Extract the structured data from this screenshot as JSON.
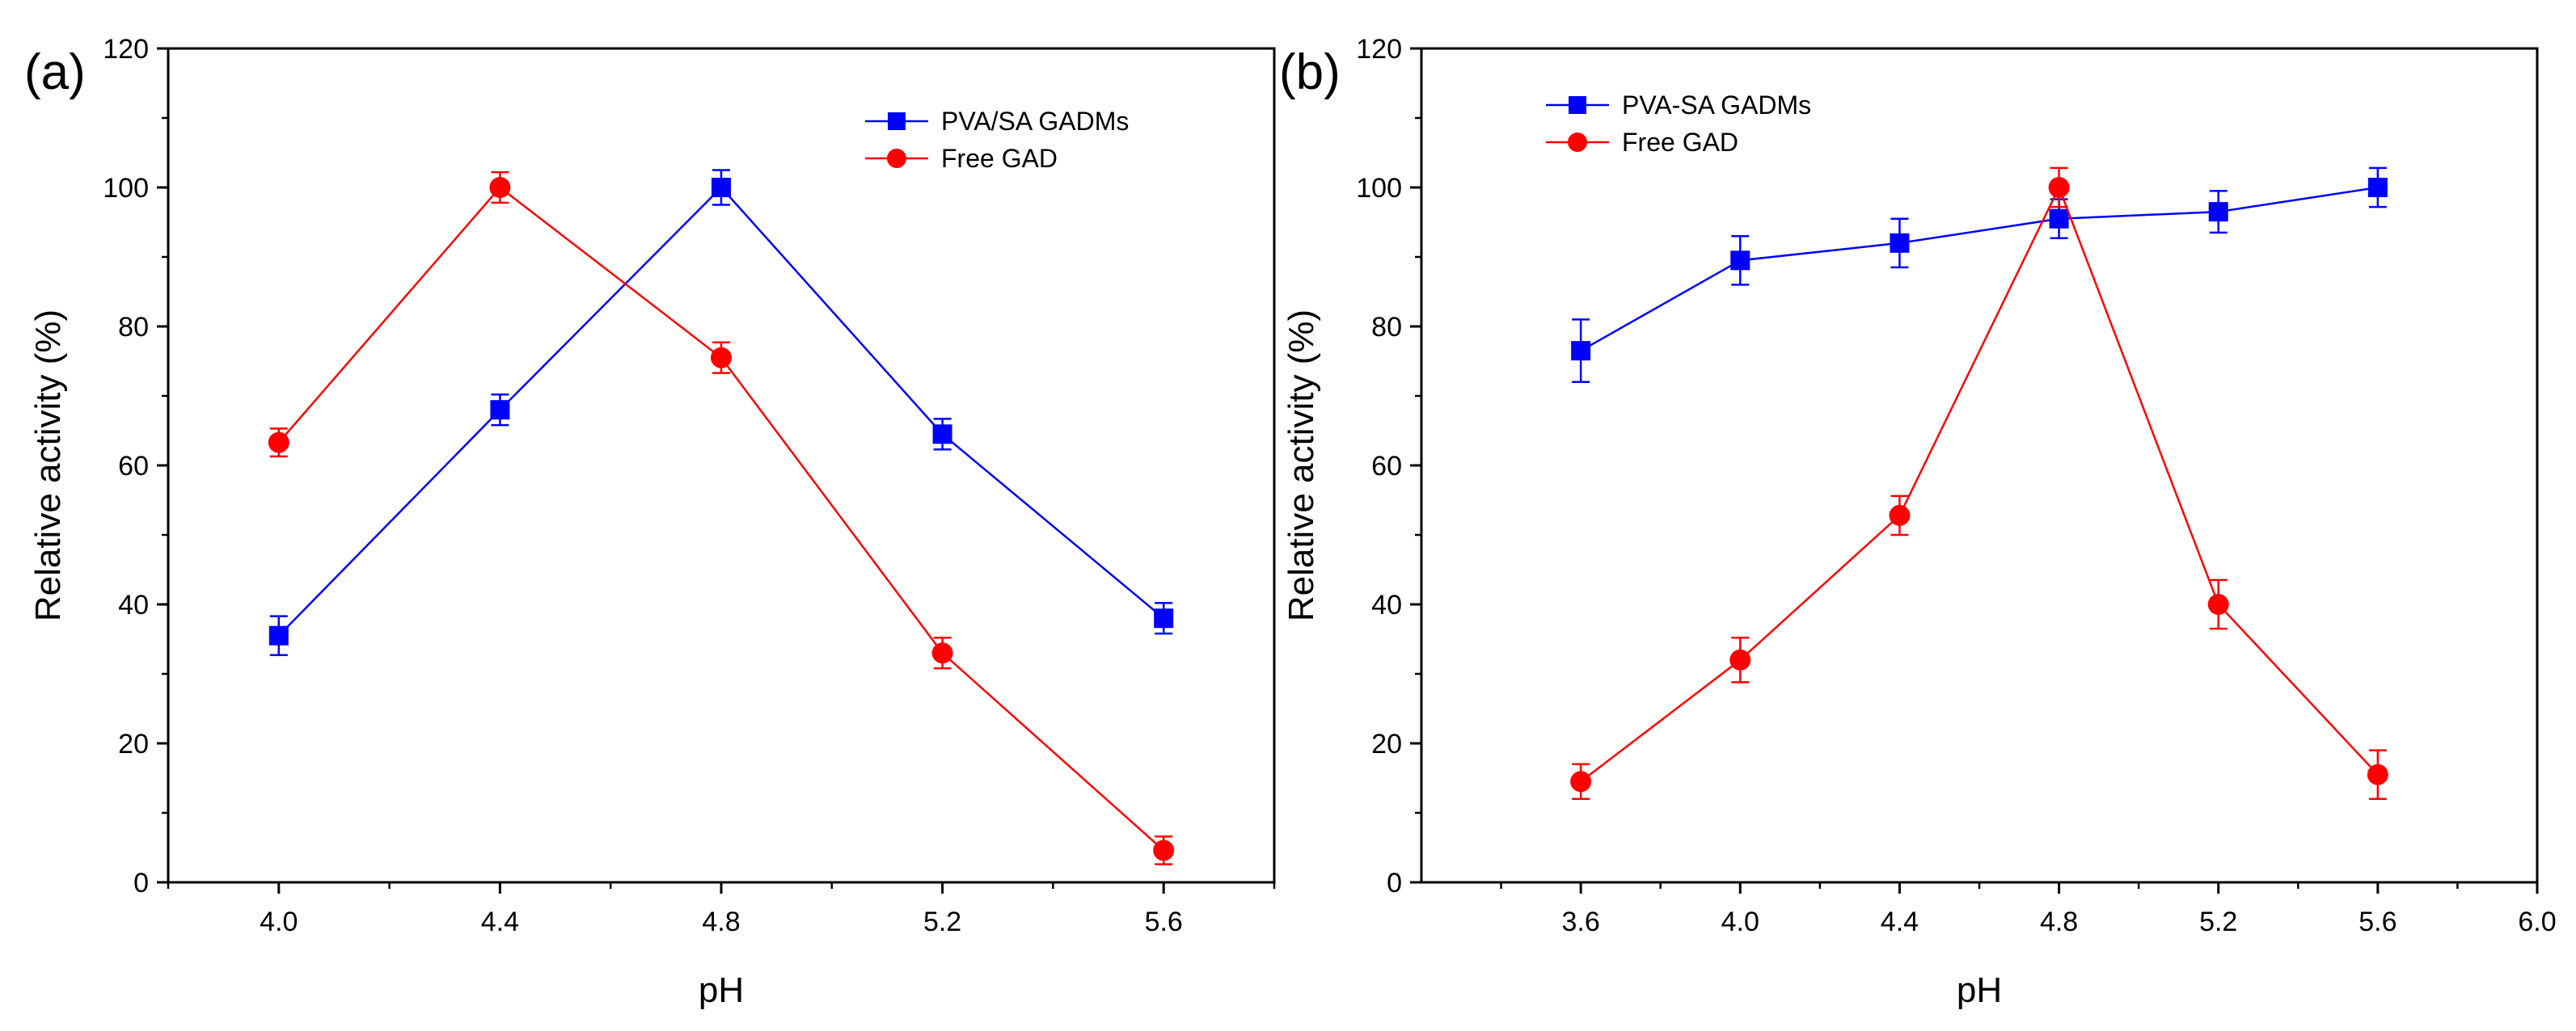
{
  "figure": {
    "panels": [
      {
        "panel_label": "(a)",
        "chart_data": {
          "type": "line",
          "title": "",
          "xlabel": "pH",
          "ylabel": "Relative activity (%)",
          "xlim": [
            3.8,
            5.8
          ],
          "ylim": [
            0,
            120
          ],
          "xticks": [
            4.0,
            4.4,
            4.8,
            5.2,
            5.6
          ],
          "xtick_labels": [
            "4.0",
            "4.4",
            "4.8",
            "5.2",
            "5.6"
          ],
          "yticks": [
            0,
            20,
            40,
            60,
            80,
            100,
            120
          ],
          "ytick_labels": [
            "0",
            "20",
            "40",
            "60",
            "80",
            "100",
            "120"
          ],
          "legend_position": "top-right",
          "series": [
            {
              "name": "PVA/SA GADMs",
              "color": "#0000ff",
              "marker": "square",
              "x": [
                4.0,
                4.4,
                4.8,
                5.2,
                5.6
              ],
              "values": [
                35.5,
                68.0,
                100.0,
                64.5,
                38.0
              ],
              "errors": [
                2.8,
                2.2,
                2.5,
                2.2,
                2.2
              ]
            },
            {
              "name": "Free GAD",
              "color": "#ff0000",
              "marker": "circle",
              "x": [
                4.0,
                4.4,
                4.8,
                5.2,
                5.6
              ],
              "values": [
                63.3,
                100.0,
                75.5,
                33.0,
                4.6
              ],
              "errors": [
                2.0,
                2.2,
                2.2,
                2.2,
                2.0
              ]
            }
          ]
        }
      },
      {
        "panel_label": "(b)",
        "chart_data": {
          "type": "line",
          "title": "",
          "xlabel": "pH",
          "ylabel": "Relative activity (%)",
          "xlim": [
            3.2,
            6.0
          ],
          "ylim": [
            0,
            120
          ],
          "xticks": [
            3.6,
            4.0,
            4.4,
            4.8,
            5.2,
            5.6,
            6.0
          ],
          "xtick_labels": [
            "3.6",
            "4.0",
            "4.4",
            "4.8",
            "5.2",
            "5.6",
            "6.0"
          ],
          "yticks": [
            0,
            20,
            40,
            60,
            80,
            100,
            120
          ],
          "ytick_labels": [
            "0",
            "20",
            "40",
            "60",
            "80",
            "100",
            "120"
          ],
          "legend_position": "top-left",
          "series": [
            {
              "name": "PVA-SA GADMs",
              "color": "#0000ff",
              "marker": "square",
              "x": [
                3.6,
                4.0,
                4.4,
                4.8,
                5.2,
                5.6
              ],
              "values": [
                76.5,
                89.5,
                92.0,
                95.5,
                96.5,
                100.0
              ],
              "errors": [
                4.5,
                3.5,
                3.5,
                2.8,
                3.0,
                2.8
              ]
            },
            {
              "name": "Free GAD",
              "color": "#ff0000",
              "marker": "circle",
              "x": [
                3.6,
                4.0,
                4.4,
                4.8,
                5.2,
                5.6
              ],
              "values": [
                14.5,
                32.0,
                52.8,
                100.0,
                40.0,
                15.5
              ],
              "errors": [
                2.5,
                3.2,
                2.8,
                2.8,
                3.5,
                3.5
              ]
            }
          ]
        }
      }
    ]
  }
}
